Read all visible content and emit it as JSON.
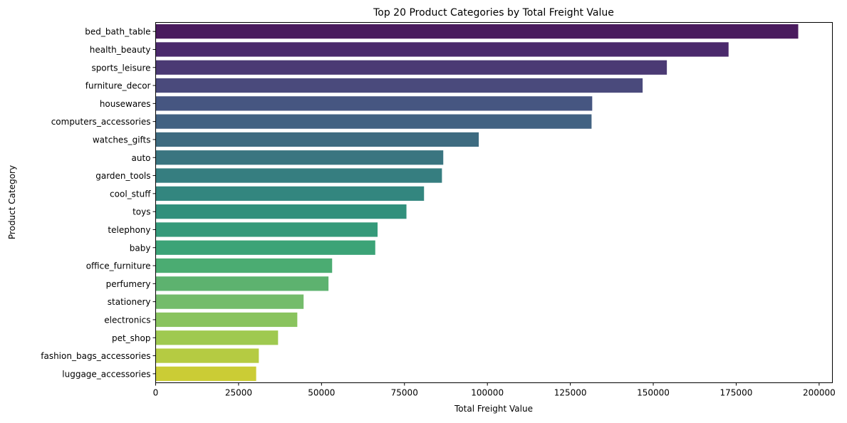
{
  "chart_data": {
    "type": "bar",
    "orientation": "horizontal",
    "title": "Top 20 Product Categories by Total Freight Value",
    "xlabel": "Total Freight Value",
    "ylabel": "Product Category",
    "xlim": [
      0,
      204000
    ],
    "xticks": [
      0,
      25000,
      50000,
      75000,
      100000,
      125000,
      150000,
      175000,
      200000
    ],
    "grid": false,
    "categories": [
      "bed_bath_table",
      "health_beauty",
      "sports_leisure",
      "furniture_decor",
      "housewares",
      "computers_accessories",
      "watches_gifts",
      "auto",
      "garden_tools",
      "cool_stuff",
      "toys",
      "telephony",
      "baby",
      "office_furniture",
      "perfumery",
      "stationery",
      "electronics",
      "pet_shop",
      "fashion_bags_accessories",
      "luggage_accessories"
    ],
    "values": [
      193700,
      172700,
      154100,
      146800,
      131600,
      131400,
      97400,
      86700,
      86300,
      80900,
      75600,
      66900,
      66200,
      53200,
      52100,
      44600,
      42700,
      36900,
      31100,
      30300
    ],
    "colors": [
      "#4a1b5e",
      "#4b2a6c",
      "#4b3a74",
      "#4a4a7c",
      "#465681",
      "#426282",
      "#3e6b80",
      "#3a7580",
      "#367e80",
      "#33867f",
      "#31907c",
      "#359a7a",
      "#3ca377",
      "#4bac72",
      "#5db26f",
      "#74bc6b",
      "#89c35e",
      "#9fc950",
      "#b5cb42",
      "#cbcc35"
    ]
  }
}
